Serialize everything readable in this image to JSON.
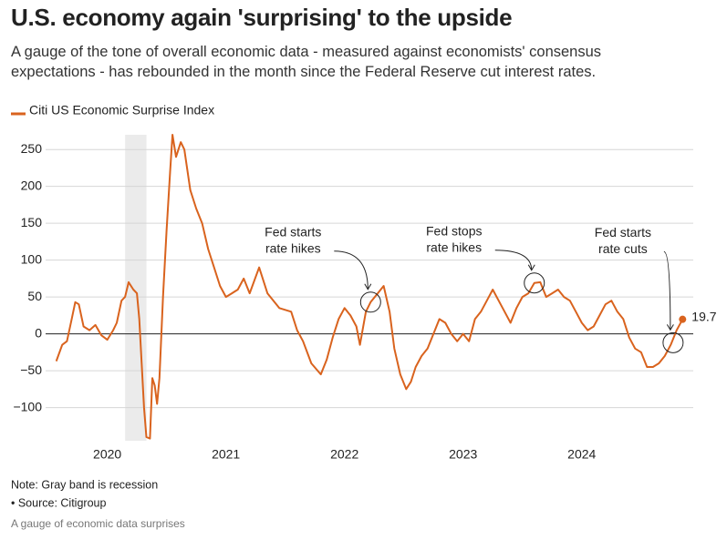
{
  "chart_data": {
    "type": "line",
    "title": "U.S. economy again 'surprising' to the upside",
    "subtitle": "A gauge of the tone of overall economic data - measured against economists' consensus expectations - has rebounded in the month since the Federal Reserve cut interest rates.",
    "note": "Note: Gray band is recession",
    "source": "• Source: Citigroup",
    "caption": "A gauge of economic data surprises",
    "recession": [
      2020.15,
      2020.33
    ],
    "xlim": [
      2019.48,
      2024.94
    ],
    "xticks": [
      2020,
      2021,
      2022,
      2023,
      2024
    ],
    "ylim": [
      -145,
      270
    ],
    "yticks": [
      {
        "value": -100,
        "label": "−100"
      },
      {
        "value": -50,
        "label": "−50"
      },
      0,
      50,
      100,
      150,
      200,
      250
    ],
    "grid": true,
    "legend": "top-left",
    "series": [
      {
        "name": "Citi US Economic Surprise Index",
        "color": "#d9631e",
        "x": [
          2019.57,
          2019.62,
          2019.66,
          2019.7,
          2019.73,
          2019.76,
          2019.8,
          2019.85,
          2019.9,
          2019.95,
          2020.0,
          2020.05,
          2020.08,
          2020.12,
          2020.15,
          2020.18,
          2020.22,
          2020.25,
          2020.27,
          2020.29,
          2020.31,
          2020.33,
          2020.36,
          2020.38,
          2020.4,
          2020.42,
          2020.44,
          2020.47,
          2020.5,
          2020.53,
          2020.55,
          2020.58,
          2020.62,
          2020.65,
          2020.7,
          2020.75,
          2020.8,
          2020.85,
          2020.9,
          2020.95,
          2021.0,
          2021.05,
          2021.1,
          2021.15,
          2021.2,
          2021.28,
          2021.35,
          2021.45,
          2021.55,
          2021.6,
          2021.65,
          2021.72,
          2021.8,
          2021.85,
          2021.9,
          2021.95,
          2022.0,
          2022.05,
          2022.1,
          2022.13,
          2022.18,
          2022.22,
          2022.28,
          2022.33,
          2022.38,
          2022.42,
          2022.47,
          2022.52,
          2022.56,
          2022.6,
          2022.65,
          2022.7,
          2022.75,
          2022.8,
          2022.85,
          2022.9,
          2022.95,
          2023.0,
          2023.05,
          2023.1,
          2023.15,
          2023.2,
          2023.25,
          2023.3,
          2023.35,
          2023.4,
          2023.45,
          2023.5,
          2023.55,
          2023.6,
          2023.65,
          2023.7,
          2023.75,
          2023.8,
          2023.85,
          2023.9,
          2023.95,
          2024.0,
          2024.05,
          2024.1,
          2024.15,
          2024.2,
          2024.25,
          2024.3,
          2024.35,
          2024.4,
          2024.45,
          2024.5,
          2024.55,
          2024.6,
          2024.65,
          2024.7,
          2024.75,
          2024.8,
          2024.85
        ],
        "values": [
          -37,
          -15,
          -10,
          20,
          43,
          40,
          10,
          5,
          12,
          -2,
          -8,
          5,
          15,
          45,
          50,
          70,
          60,
          55,
          20,
          -40,
          -100,
          -140,
          -142,
          -60,
          -70,
          -95,
          -60,
          50,
          140,
          220,
          270,
          240,
          260,
          250,
          195,
          170,
          150,
          115,
          90,
          65,
          50,
          55,
          60,
          75,
          55,
          90,
          55,
          35,
          30,
          5,
          -10,
          -40,
          -55,
          -35,
          -5,
          20,
          35,
          25,
          10,
          -15,
          30,
          43,
          55,
          65,
          30,
          -20,
          -55,
          -75,
          -65,
          -45,
          -30,
          -20,
          0,
          20,
          15,
          0,
          -10,
          0,
          -10,
          20,
          30,
          45,
          60,
          45,
          30,
          15,
          35,
          50,
          55,
          69,
          70,
          50,
          55,
          60,
          50,
          45,
          30,
          15,
          5,
          10,
          25,
          40,
          45,
          30,
          20,
          -5,
          -20,
          -25,
          -45,
          -45,
          -40,
          -30,
          -15,
          5,
          19.7
        ]
      }
    ],
    "annotations": [
      {
        "text": [
          "Fed starts",
          "rate hikes"
        ],
        "x": 2022.22,
        "y": 43
      },
      {
        "text": [
          "Fed stops",
          "rate hikes"
        ],
        "x": 2023.6,
        "y": 69
      },
      {
        "text": [
          "Fed starts",
          "rate cuts"
        ],
        "x": 2024.77,
        "y": -12
      }
    ]
  }
}
